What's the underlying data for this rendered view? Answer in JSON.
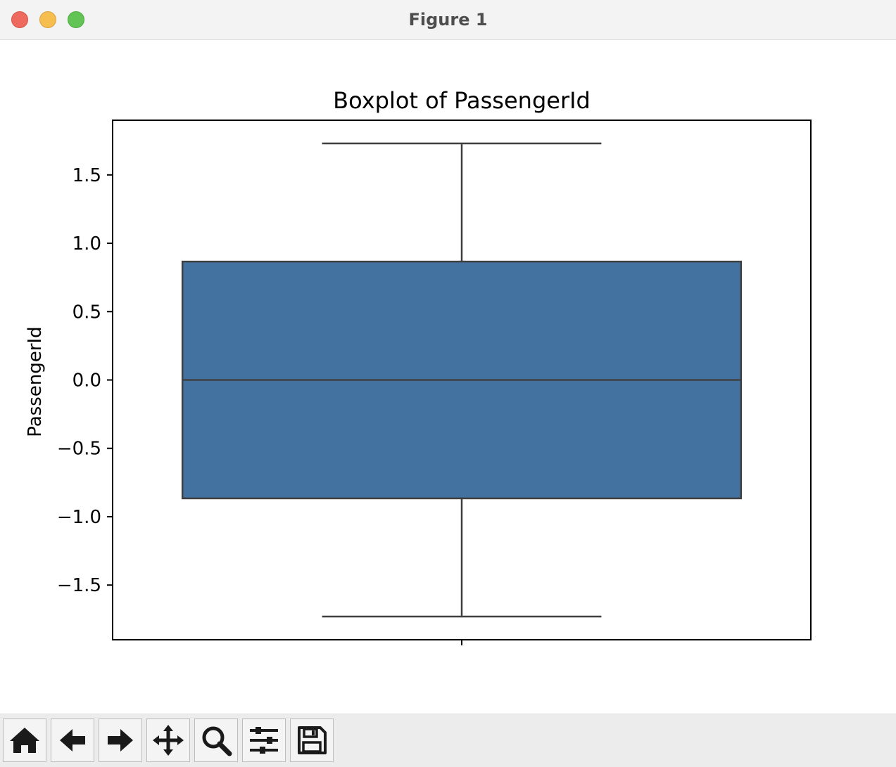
{
  "window": {
    "title": "Figure 1"
  },
  "toolbar": {
    "buttons": [
      {
        "name": "home",
        "icon": "home-icon"
      },
      {
        "name": "back",
        "icon": "arrow-left-icon"
      },
      {
        "name": "forward",
        "icon": "arrow-right-icon"
      },
      {
        "name": "pan",
        "icon": "move-icon"
      },
      {
        "name": "zoom",
        "icon": "magnifier-icon"
      },
      {
        "name": "configure-subplots",
        "icon": "sliders-icon"
      },
      {
        "name": "save",
        "icon": "floppy-disk-icon"
      }
    ]
  },
  "chart_data": {
    "type": "box",
    "title": "Boxplot of PassengerId",
    "xlabel": "",
    "ylabel": "PassengerId",
    "ylim": [
      -1.9,
      1.9
    ],
    "yticks": [
      -1.5,
      -1.0,
      -0.5,
      0.0,
      0.5,
      1.0,
      1.5
    ],
    "ytick_labels": [
      "−1.5",
      "−1.0",
      "−0.5",
      "0.0",
      "0.5",
      "1.0",
      "1.5"
    ],
    "box": {
      "whisker_low": -1.73,
      "q1": -0.866,
      "median": 0.0,
      "q3": 0.866,
      "whisker_high": 1.73
    },
    "box_color": "#4472a0",
    "edge_color": "#3f3f3f",
    "grid": false,
    "legend": "none"
  }
}
